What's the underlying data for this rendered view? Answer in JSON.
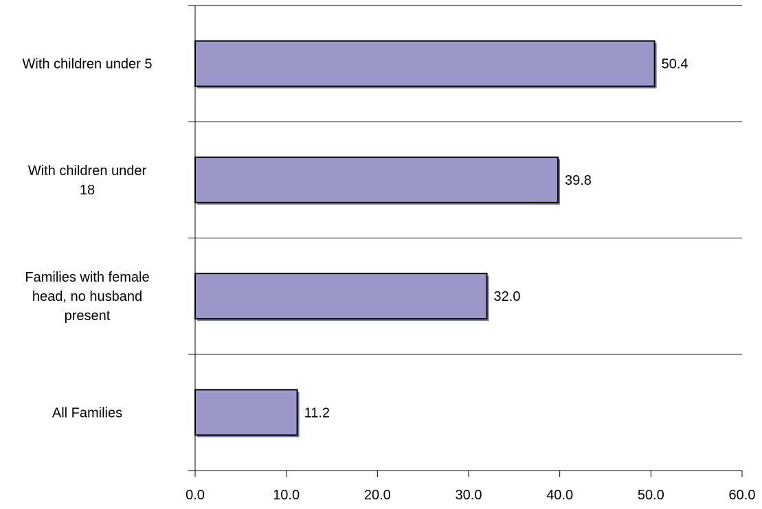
{
  "chart_data": {
    "type": "bar",
    "orientation": "horizontal",
    "categories": [
      [
        "With children under 5"
      ],
      [
        "With children under",
        "18"
      ],
      [
        "Families with female",
        "head, no husband",
        "present"
      ],
      [
        "All Families"
      ]
    ],
    "values": [
      50.4,
      39.8,
      32.0,
      11.2
    ],
    "value_labels": [
      "50.4",
      "39.8",
      "32.0",
      "11.2"
    ],
    "xticks": [
      0,
      10,
      20,
      30,
      40,
      50,
      60
    ],
    "xtick_labels": [
      "0.0",
      "10.0",
      "20.0",
      "30.0",
      "40.0",
      "50.0",
      "60.0"
    ],
    "xlim": [
      0,
      60
    ],
    "bar_color": "#9b97c9",
    "bar_shadow_color": "#7b78b6",
    "bar_border_color": "#000000",
    "grid": "horizontal separators between categories"
  }
}
